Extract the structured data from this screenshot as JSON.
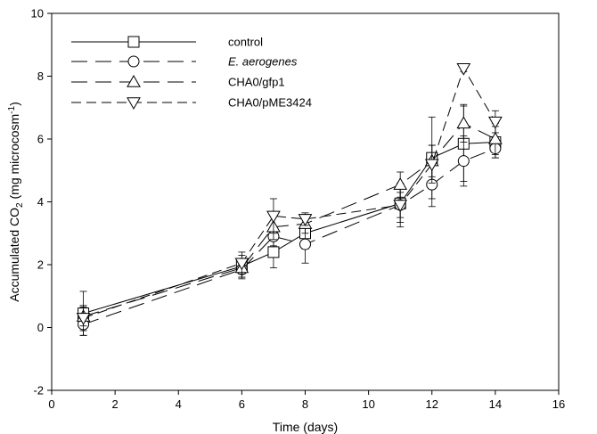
{
  "chart_data": {
    "type": "line",
    "xlabel": "Time (days)",
    "ylabel_main": "Accumulated CO",
    "ylabel_sub": "2",
    "ylabel_unit": " (mg microcosm",
    "ylabel_sup": "-1",
    "ylabel_end": ")",
    "xlim": [
      0,
      16
    ],
    "ylim": [
      -2,
      10
    ],
    "xticks": [
      0,
      2,
      4,
      6,
      8,
      10,
      12,
      14,
      16
    ],
    "yticks": [
      -2,
      0,
      2,
      4,
      6,
      8,
      10
    ],
    "grid": false,
    "legend_position": "top-left",
    "series": [
      {
        "name": "control",
        "italic": false,
        "marker": "square",
        "dash": "solid",
        "x": [
          1,
          6,
          7,
          8,
          11,
          12,
          13,
          14
        ],
        "y": [
          0.45,
          1.95,
          2.4,
          3.0,
          3.95,
          5.4,
          5.85,
          5.9
        ],
        "err": [
          0.7,
          0.35,
          0.5,
          0.5,
          0.6,
          1.3,
          1.2,
          0.5
        ]
      },
      {
        "name": "E. aerogenes",
        "italic": true,
        "marker": "circle",
        "dash": "longdash",
        "x": [
          1,
          6,
          7,
          8,
          11,
          12,
          13,
          14
        ],
        "y": [
          0.1,
          1.85,
          2.9,
          2.65,
          3.9,
          4.55,
          5.3,
          5.7
        ],
        "err": [
          0.35,
          0.3,
          0.3,
          0.6,
          0.7,
          0.7,
          0.8,
          0.3
        ]
      },
      {
        "name": "CHA0/gfp1",
        "italic": false,
        "marker": "triangle-up",
        "dash": "longdash",
        "x": [
          1,
          6,
          7,
          8,
          11,
          12,
          13,
          14
        ],
        "y": [
          0.35,
          1.9,
          3.2,
          3.3,
          4.55,
          5.3,
          6.5,
          6.0
        ],
        "err": [
          0.3,
          0.3,
          0.4,
          0.3,
          0.4,
          0.5,
          0.6,
          0.5
        ]
      },
      {
        "name": "CHA0/pME3424",
        "italic": false,
        "marker": "triangle-down",
        "dash": "mediumdash",
        "x": [
          1,
          6,
          7,
          8,
          11,
          12,
          13,
          14
        ],
        "y": [
          0.3,
          2.05,
          3.55,
          3.45,
          3.9,
          5.2,
          8.25,
          6.55
        ],
        "err": [
          0.4,
          0.35,
          0.55,
          0.2,
          0.4,
          0.6,
          0.1,
          0.35
        ]
      }
    ]
  }
}
